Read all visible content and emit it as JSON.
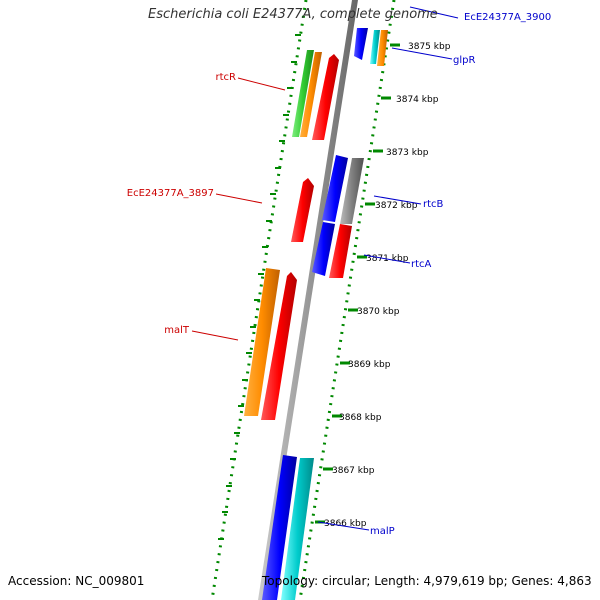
{
  "title": "Escherichia coli E24377A, complete genome",
  "accession_text": "Accession: NC_009801",
  "summary_text": "Topology: circular; Length: 4,979,619 bp; Genes: 4,863",
  "ticks": [
    {
      "label": "3875 kbp"
    },
    {
      "label": "3874 kbp"
    },
    {
      "label": "3873 kbp"
    },
    {
      "label": "3872 kbp"
    },
    {
      "label": "3871 kbp"
    },
    {
      "label": "3870 kbp"
    },
    {
      "label": "3869 kbp"
    },
    {
      "label": "3868 kbp"
    },
    {
      "label": "3867 kbp"
    },
    {
      "label": "3866 kbp"
    }
  ],
  "gene_labels_left": [
    {
      "text": "rtcR",
      "color": "#cc0000"
    },
    {
      "text": "EcE24377A_3897",
      "color": "#cc0000"
    },
    {
      "text": "malT",
      "color": "#cc0000"
    }
  ],
  "gene_labels_right": [
    {
      "text": "EcE24377A_3900",
      "color": "#0000cc"
    },
    {
      "text": "glpR",
      "color": "#0000cc"
    },
    {
      "text": "rtcB",
      "color": "#0000cc"
    },
    {
      "text": "rtcA",
      "color": "#0000cc"
    },
    {
      "text": "malP",
      "color": "#0000cc"
    }
  ],
  "colors": {
    "red": "#ff0000",
    "orange": "#ff8c00",
    "green": "#33cc33",
    "blue": "#0000ff",
    "cyan": "#00cccc",
    "gray": "#808080",
    "backbone": "#999999",
    "dots": "#008800",
    "label_red": "#cc0000",
    "label_blue": "#0000cc"
  }
}
